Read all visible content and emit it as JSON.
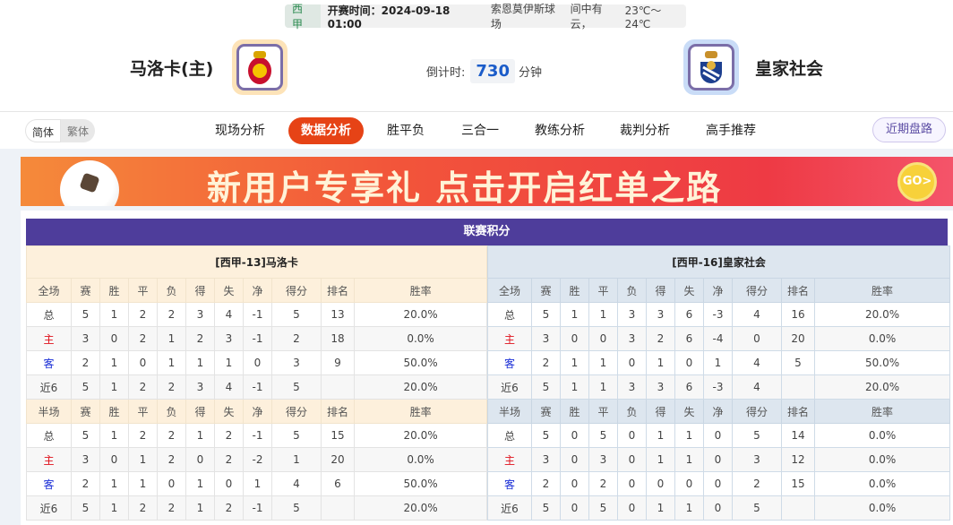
{
  "match": {
    "league": "西甲",
    "time_label": "开赛时间：",
    "time": "2024-09-18 01:00",
    "venue": "索恩莫伊斯球场",
    "weather": "间中有云，",
    "temp": "23℃～24℃"
  },
  "home": {
    "name": "马洛卡(主)",
    "logo": "mallorca-crest-icon",
    "logo_border": "#fde3b8"
  },
  "away": {
    "name": "皇家社会",
    "logo": "real-sociedad-crest-icon",
    "logo_border": "#c9dcf7"
  },
  "countdown": {
    "label": "倒计时:",
    "value": "730",
    "unit": "分钟"
  },
  "nav": {
    "lang": [
      "简体",
      "繁体"
    ],
    "tabs": [
      "现场分析",
      "数据分析",
      "胜平负",
      "三合一",
      "教练分析",
      "裁判分析",
      "高手推荐"
    ],
    "active": "数据分析",
    "recent": "近期盘路",
    "accent": "#e64316"
  },
  "banner": {
    "text": "新用户专享礼  点击开启红单之路",
    "go": "GO>"
  },
  "standings": {
    "title": "联赛积分",
    "tables": [
      {
        "title": "[西甲-13]马洛卡",
        "sections": [
          {
            "header": [
              "全场",
              "赛",
              "胜",
              "平",
              "负",
              "得",
              "失",
              "净",
              "得分",
              "排名",
              "胜率"
            ],
            "rows": [
              [
                "总",
                "5",
                "1",
                "2",
                "2",
                "3",
                "4",
                "-1",
                "5",
                "13",
                "20.0%"
              ],
              [
                "主",
                "3",
                "0",
                "2",
                "1",
                "2",
                "3",
                "-1",
                "2",
                "18",
                "0.0%"
              ],
              [
                "客",
                "2",
                "1",
                "0",
                "1",
                "1",
                "1",
                "0",
                "3",
                "9",
                "50.0%"
              ],
              [
                "近6",
                "5",
                "1",
                "2",
                "2",
                "3",
                "4",
                "-1",
                "5",
                "",
                "20.0%"
              ]
            ]
          },
          {
            "header": [
              "半场",
              "赛",
              "胜",
              "平",
              "负",
              "得",
              "失",
              "净",
              "得分",
              "排名",
              "胜率"
            ],
            "rows": [
              [
                "总",
                "5",
                "1",
                "2",
                "2",
                "1",
                "2",
                "-1",
                "5",
                "15",
                "20.0%"
              ],
              [
                "主",
                "3",
                "0",
                "1",
                "2",
                "0",
                "2",
                "-2",
                "1",
                "20",
                "0.0%"
              ],
              [
                "客",
                "2",
                "1",
                "1",
                "0",
                "1",
                "0",
                "1",
                "4",
                "6",
                "50.0%"
              ],
              [
                "近6",
                "5",
                "1",
                "2",
                "2",
                "1",
                "2",
                "-1",
                "5",
                "",
                "20.0%"
              ]
            ]
          }
        ]
      },
      {
        "title": "[西甲-16]皇家社会",
        "sections": [
          {
            "header": [
              "全场",
              "赛",
              "胜",
              "平",
              "负",
              "得",
              "失",
              "净",
              "得分",
              "排名",
              "胜率"
            ],
            "rows": [
              [
                "总",
                "5",
                "1",
                "1",
                "3",
                "3",
                "6",
                "-3",
                "4",
                "16",
                "20.0%"
              ],
              [
                "主",
                "3",
                "0",
                "0",
                "3",
                "2",
                "6",
                "-4",
                "0",
                "20",
                "0.0%"
              ],
              [
                "客",
                "2",
                "1",
                "1",
                "0",
                "1",
                "0",
                "1",
                "4",
                "5",
                "50.0%"
              ],
              [
                "近6",
                "5",
                "1",
                "1",
                "3",
                "3",
                "6",
                "-3",
                "4",
                "",
                "20.0%"
              ]
            ]
          },
          {
            "header": [
              "半场",
              "赛",
              "胜",
              "平",
              "负",
              "得",
              "失",
              "净",
              "得分",
              "排名",
              "胜率"
            ],
            "rows": [
              [
                "总",
                "5",
                "0",
                "5",
                "0",
                "1",
                "1",
                "0",
                "5",
                "14",
                "0.0%"
              ],
              [
                "主",
                "3",
                "0",
                "3",
                "0",
                "1",
                "1",
                "0",
                "3",
                "12",
                "0.0%"
              ],
              [
                "客",
                "2",
                "0",
                "2",
                "0",
                "0",
                "0",
                "0",
                "2",
                "15",
                "0.0%"
              ],
              [
                "近6",
                "5",
                "0",
                "5",
                "0",
                "1",
                "1",
                "0",
                "5",
                "",
                "0.0%"
              ]
            ]
          }
        ]
      }
    ]
  }
}
